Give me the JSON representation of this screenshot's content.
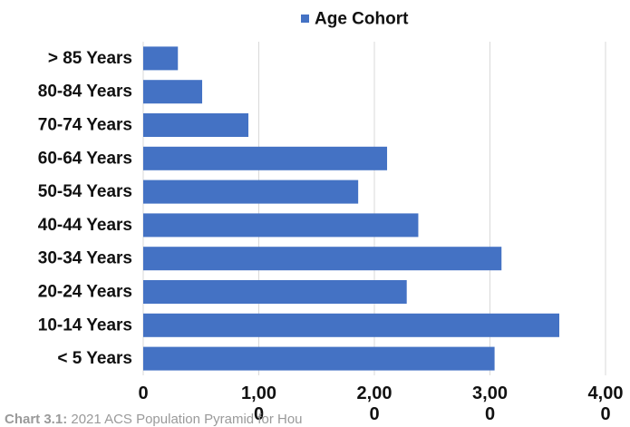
{
  "chart_data": {
    "type": "bar",
    "orientation": "horizontal",
    "categories": [
      "> 85 Years",
      "80-84 Years",
      "70-74 Years",
      "60-64 Years",
      "50-54 Years",
      "40-44 Years",
      "30-34 Years",
      "20-24 Years",
      "10-14 Years",
      "< 5 Years"
    ],
    "series": [
      {
        "name": "Age Cohort",
        "color": "#4472c4",
        "values": [
          300,
          510,
          910,
          2110,
          1860,
          2380,
          3100,
          2280,
          3600,
          3040
        ]
      }
    ],
    "xlim": [
      0,
      4000
    ],
    "x_ticks": [
      0,
      1000,
      2000,
      3000,
      4000
    ],
    "x_tick_labels": [
      [
        "0"
      ],
      [
        "1,00",
        "0"
      ],
      [
        "2,00",
        "0"
      ],
      [
        "3,00",
        "0"
      ],
      [
        "4,00",
        "0"
      ]
    ],
    "grid": true,
    "legend_position": "top"
  },
  "caption": {
    "label": "Chart 3.1:",
    "text": " 2021 ACS Population Pyramid for Hou"
  }
}
